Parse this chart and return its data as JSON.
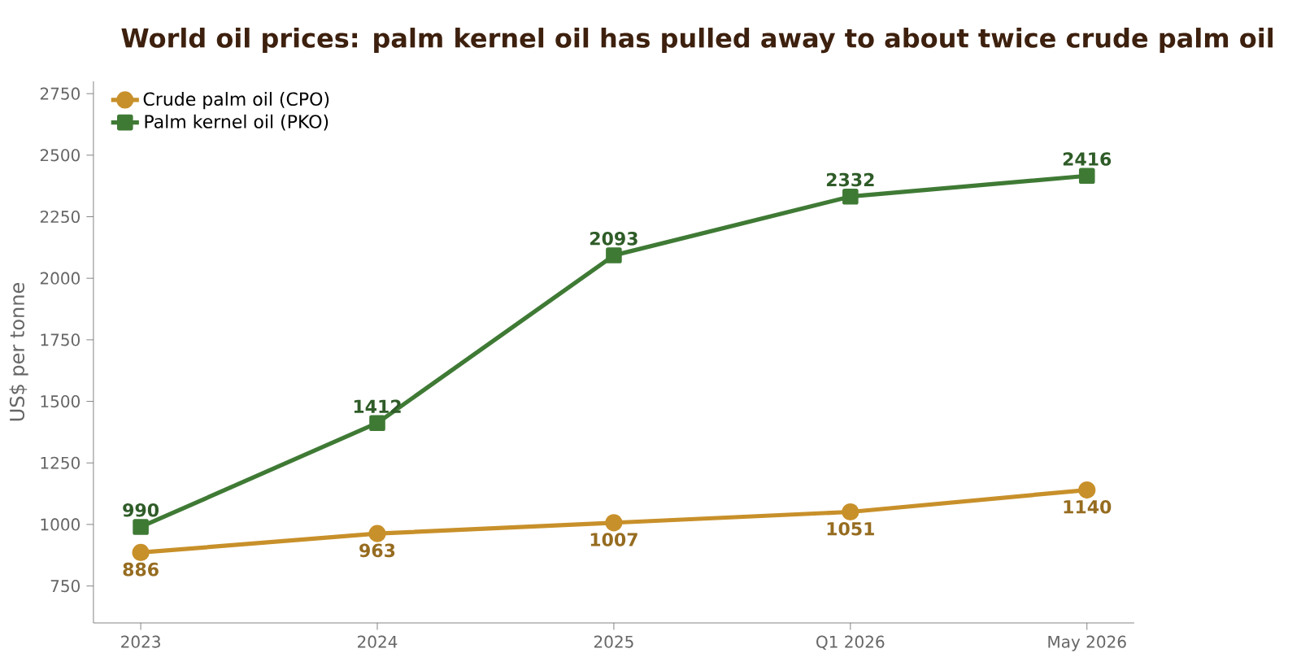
{
  "chart_data": {
    "type": "line",
    "title": "World oil prices: palm kernel oil has pulled away to about twice crude palm oil",
    "ylabel": "US$ per tonne",
    "categories": [
      "2023",
      "2024",
      "2025",
      "Q1 2026",
      "May 2026"
    ],
    "series": [
      {
        "name": "Crude palm oil (CPO)",
        "color": "#c8902a",
        "marker": "circle",
        "values": [
          886,
          963,
          1007,
          1051,
          1140
        ]
      },
      {
        "name": "Palm kernel oil (PKO)",
        "color": "#3f7a35",
        "marker": "square",
        "values": [
          990,
          1412,
          2093,
          2332,
          2416
        ]
      }
    ],
    "ylim": [
      600,
      2800
    ],
    "yticks": [
      750,
      1000,
      1250,
      1500,
      1750,
      2000,
      2250,
      2500,
      2750
    ],
    "data_labels": true,
    "legend": "top left",
    "grid": false,
    "line_style": "solid"
  }
}
